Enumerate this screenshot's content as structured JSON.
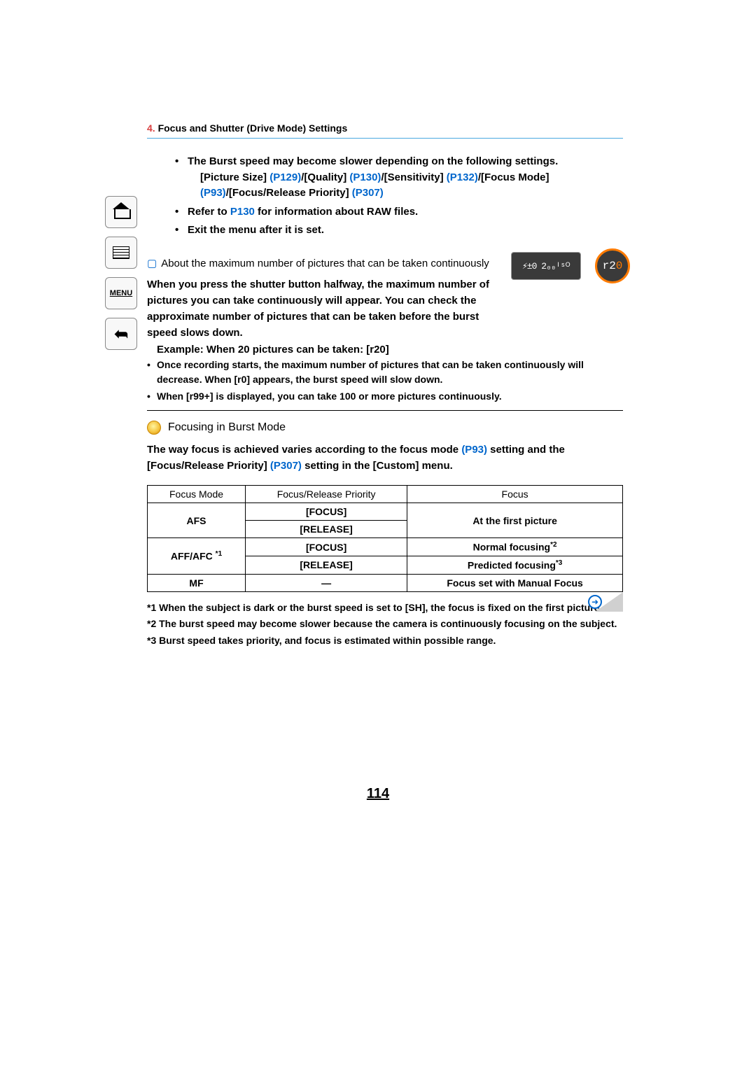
{
  "breadcrumb": {
    "num": "4.",
    "text": " Focus and Shutter (Drive Mode) Settings"
  },
  "sideNav": {
    "menuLabel": "MENU"
  },
  "topBullets": {
    "b1_pre": "The Burst speed may become slower depending on the following settings.",
    "b1_line2_a": "[Picture Size] ",
    "b1_link1": "(P129)",
    "b1_line2_b": "/[Quality] ",
    "b1_link2": "(P130)",
    "b1_line2_c": "/[Sensitivity] ",
    "b1_link3": "(P132)",
    "b1_line2_d": "/[Focus Mode] ",
    "b1_link4": "(P93)",
    "b1_line2_e": "/[Focus/Release Priority] ",
    "b1_link5": "(P307)",
    "b2_a": "Refer to ",
    "b2_link": "P130",
    "b2_b": " for information about RAW files.",
    "b3": "Exit the menu after it is set."
  },
  "section1": {
    "heading": "About the maximum number of pictures that can be taken continuously",
    "p1": "When you press the shutter button halfway, the maximum number of pictures you can take continuously will appear. You can check the approximate number of pictures that can be taken before the burst speed slows down.",
    "example": "Example: When 20 pictures can be taken: [r20]",
    "n1": "Once recording starts, the maximum number of pictures that can be taken continuously will decrease. When [r0] appears, the burst speed will slow down.",
    "n2": "When [r99+] is displayed, you can take 100 or more pictures continuously."
  },
  "lcd": {
    "box": "⚡±0 2₀₀ᴵˢᴼ",
    "circle_r": "r2",
    "circle_o": "0"
  },
  "section2": {
    "heading": "Focusing in Burst Mode",
    "p_a": "The way focus is achieved varies according to the focus mode ",
    "p_link1": "(P93)",
    "p_b": " setting and the [Focus/Release Priority] ",
    "p_link2": "(P307)",
    "p_c": " setting in the [Custom] menu."
  },
  "table": {
    "headers": {
      "c1": "Focus Mode",
      "c2": "Focus/Release Priority",
      "c3": "Focus"
    },
    "r1": {
      "mode": "AFS",
      "p1": "[FOCUS]",
      "p2": "[RELEASE]",
      "focus": "At the first picture"
    },
    "r2": {
      "mode": "AFF/AFC ",
      "sup": "*1",
      "p1": "[FOCUS]",
      "f1": "Normal focusing",
      "s1": "*2",
      "p2": "[RELEASE]",
      "f2": "Predicted focusing",
      "s2": "*3"
    },
    "r3": {
      "mode": "MF",
      "p": "—",
      "focus": "Focus set with Manual Focus"
    }
  },
  "footnotes": {
    "n1": "*1 When the subject is dark or the burst speed is set to [SH], the focus is fixed on the first picture.",
    "n2": "*2 The burst speed may become slower because the camera is continuously focusing on the subject.",
    "n3": "*3 Burst speed takes priority, and focus is estimated within possible range."
  },
  "pageNumber": "114",
  "colors": {
    "link": "#0066cc",
    "accent": "#ff7b00",
    "headerRule": "#4aa8e0"
  }
}
